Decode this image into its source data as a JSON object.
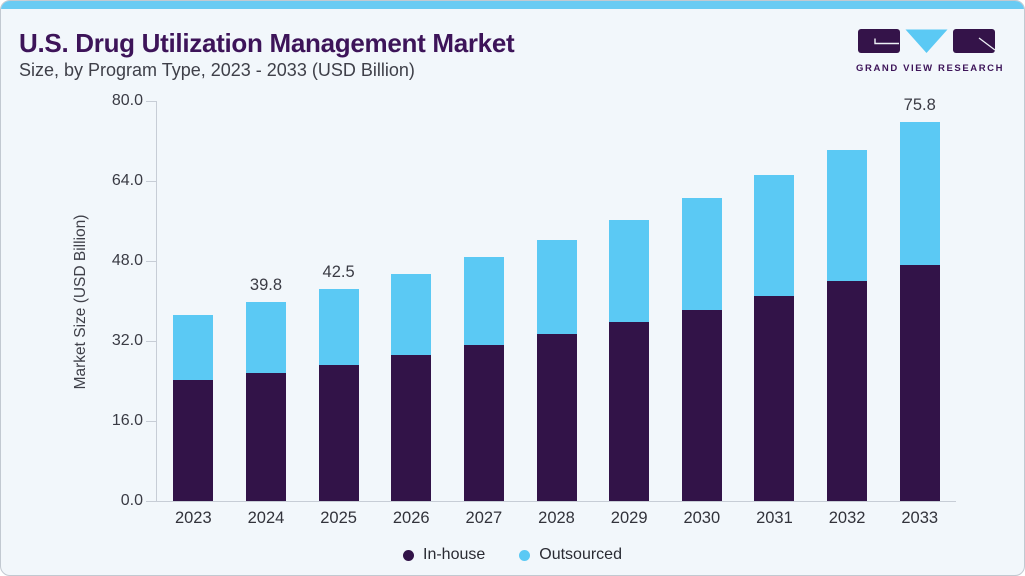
{
  "header": {
    "title": "U.S. Drug Utilization Management Market",
    "subtitle": "Size, by Program Type, 2023 - 2033 (USD Billion)",
    "brand": "GRAND VIEW RESEARCH"
  },
  "theme": {
    "background": "#F2F7FB",
    "top_accent": "#69CBF3",
    "title_color": "#3D1459",
    "axis_color": "#C7CDD6",
    "text_color": "#3A3B44"
  },
  "chart_data": {
    "type": "bar",
    "stacked": true,
    "title": "U.S. Drug Utilization Management Market Size, by Program Type, 2023 - 2033 (USD Billion)",
    "categories": [
      "2023",
      "2024",
      "2025",
      "2026",
      "2027",
      "2028",
      "2029",
      "2030",
      "2031",
      "2032",
      "2033"
    ],
    "series": [
      {
        "name": "In-house",
        "color": "#321348",
        "values": [
          24.2,
          25.7,
          27.3,
          29.2,
          31.2,
          33.4,
          35.8,
          38.3,
          41.0,
          44.0,
          47.2
        ]
      },
      {
        "name": "Outsourced",
        "color": "#5BC9F4",
        "values": [
          13.0,
          14.1,
          15.2,
          16.2,
          17.6,
          18.9,
          20.5,
          22.3,
          24.2,
          26.3,
          28.6
        ]
      }
    ],
    "totals": [
      37.2,
      39.8,
      42.5,
      45.4,
      48.8,
      52.3,
      56.3,
      60.6,
      65.2,
      70.3,
      75.8
    ],
    "bar_labels": [
      "",
      "39.8",
      "42.5",
      "",
      "",
      "",
      "",
      "",
      "",
      "",
      "75.8"
    ],
    "xlabel": "",
    "ylabel": "Market Size (USD Billion)",
    "ylim": [
      0,
      80
    ],
    "yticks": [
      "0.0",
      "16.0",
      "32.0",
      "48.0",
      "64.0",
      "80.0"
    ],
    "grid": false,
    "legend_position": "bottom-center"
  }
}
